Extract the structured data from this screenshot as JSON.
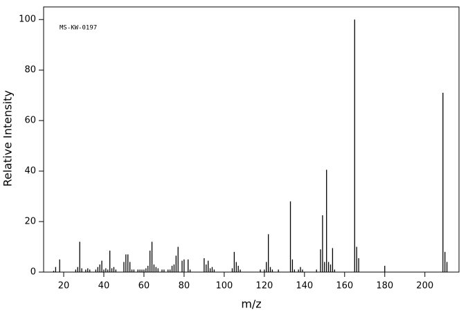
{
  "chart_data": {
    "type": "stem",
    "annotation": "MS-KW-0197",
    "x_label": "m/z",
    "y_label": "Relative Intensity",
    "color": "#000000",
    "x": [
      15,
      16,
      18,
      26,
      27,
      28,
      29,
      31,
      32,
      33,
      36,
      37,
      38,
      39,
      40,
      41,
      42,
      43,
      44,
      45,
      46,
      50,
      51,
      52,
      53,
      54,
      55,
      57,
      58,
      59,
      60,
      61,
      62,
      63,
      64,
      65,
      66,
      67,
      69,
      70,
      72,
      73,
      74,
      75,
      76,
      77,
      79,
      80,
      82,
      83,
      90,
      91,
      92,
      93,
      94,
      95,
      104,
      105,
      106,
      107,
      108,
      118,
      120,
      121,
      122,
      123,
      124,
      127,
      133,
      134,
      135,
      137,
      138,
      139,
      146,
      148,
      149,
      150,
      151,
      152,
      153,
      154,
      155,
      165,
      166,
      167,
      180,
      209,
      210,
      211
    ],
    "values": [
      0.5,
      2,
      5,
      1,
      2,
      12,
      1.5,
      1,
      1.5,
      1,
      1,
      2,
      3,
      4.5,
      1,
      1.5,
      1,
      8.5,
      1.5,
      2,
      1,
      4,
      7,
      7,
      4,
      1,
      1,
      1,
      1,
      1,
      1,
      1.5,
      2.5,
      8.5,
      12,
      3,
      2,
      1.5,
      1,
      1,
      1,
      1,
      2.5,
      3,
      6.5,
      10,
      4.5,
      5,
      5,
      1,
      5.5,
      3,
      4.5,
      1.5,
      2,
      1,
      1.5,
      8,
      4,
      2.5,
      1,
      1,
      1,
      4,
      15,
      2,
      1,
      1,
      28,
      5,
      1,
      1,
      2,
      1,
      1,
      9,
      22.5,
      4,
      40.5,
      4,
      3,
      9.5,
      1,
      100,
      10,
      5.5,
      2.5,
      71,
      8,
      4
    ],
    "xlim": [
      10,
      217
    ],
    "ylim": [
      0,
      105
    ],
    "xticks": [
      20,
      40,
      60,
      80,
      100,
      120,
      140,
      160,
      180,
      200
    ],
    "yticks": [
      0,
      20,
      40,
      60,
      80,
      100
    ]
  }
}
